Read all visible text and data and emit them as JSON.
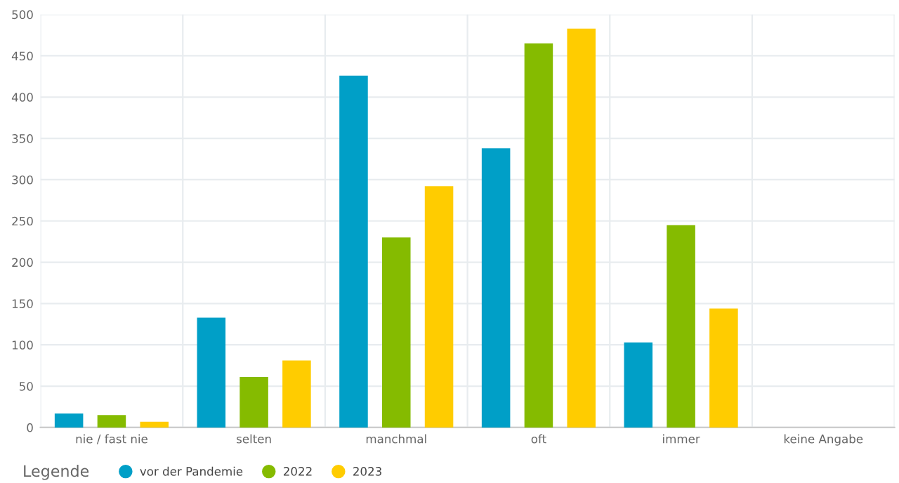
{
  "chart_data": {
    "type": "bar",
    "categories": [
      "nie / fast nie",
      "selten",
      "manchmal",
      "oft",
      "immer",
      "keine Angabe"
    ],
    "series": [
      {
        "name": "vor der Pandemie",
        "color": "#009fc7",
        "values": [
          17,
          133,
          426,
          338,
          103,
          null
        ]
      },
      {
        "name": "2022",
        "color": "#85bb00",
        "values": [
          15,
          61,
          230,
          465,
          245,
          null
        ]
      },
      {
        "name": "2023",
        "color": "#ffcc00",
        "values": [
          7,
          81,
          292,
          483,
          144,
          null
        ]
      }
    ],
    "ylim": [
      0,
      500
    ],
    "yticks": [
      0,
      50,
      100,
      150,
      200,
      250,
      300,
      350,
      400,
      450,
      500
    ],
    "grid": true,
    "legend": "bottom left",
    "legend_title": "Legende"
  }
}
